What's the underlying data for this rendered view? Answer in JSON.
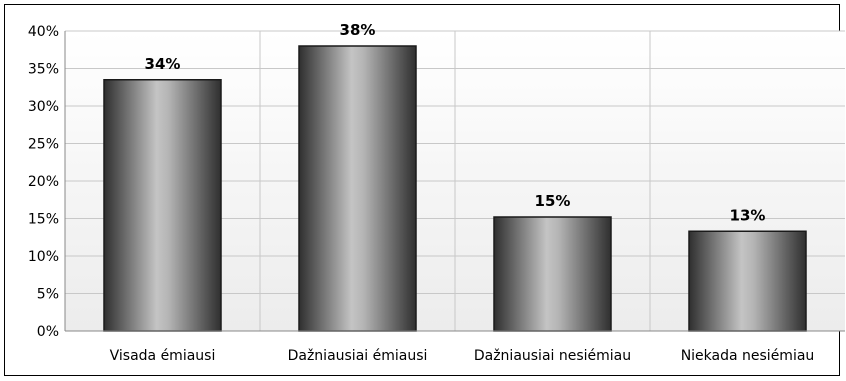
{
  "chart_data": {
    "type": "bar",
    "title": "",
    "xlabel": "",
    "ylabel": "",
    "categories": [
      "Visada émiausi",
      "Dažniausiai émiausi",
      "Dažniausiai nesiémiau",
      "Niekada nesiémiau"
    ],
    "values": [
      33.5,
      38,
      15.2,
      13.3
    ],
    "data_labels": [
      "34%",
      "38%",
      "15%",
      "13%"
    ],
    "ylim": [
      0,
      40
    ],
    "y_ticks": [
      "0%",
      "5%",
      "10%",
      "15%",
      "20%",
      "25%",
      "30%",
      "35%",
      "40%"
    ],
    "grid": true,
    "legend": "none",
    "colors": {
      "bar_dark": "#3a3a3a",
      "bar_light": "#bdbdbd",
      "grid": "#c8c8c8",
      "plot_bg_top": "#ffffff",
      "plot_bg_bottom": "#f2f2f2"
    }
  }
}
